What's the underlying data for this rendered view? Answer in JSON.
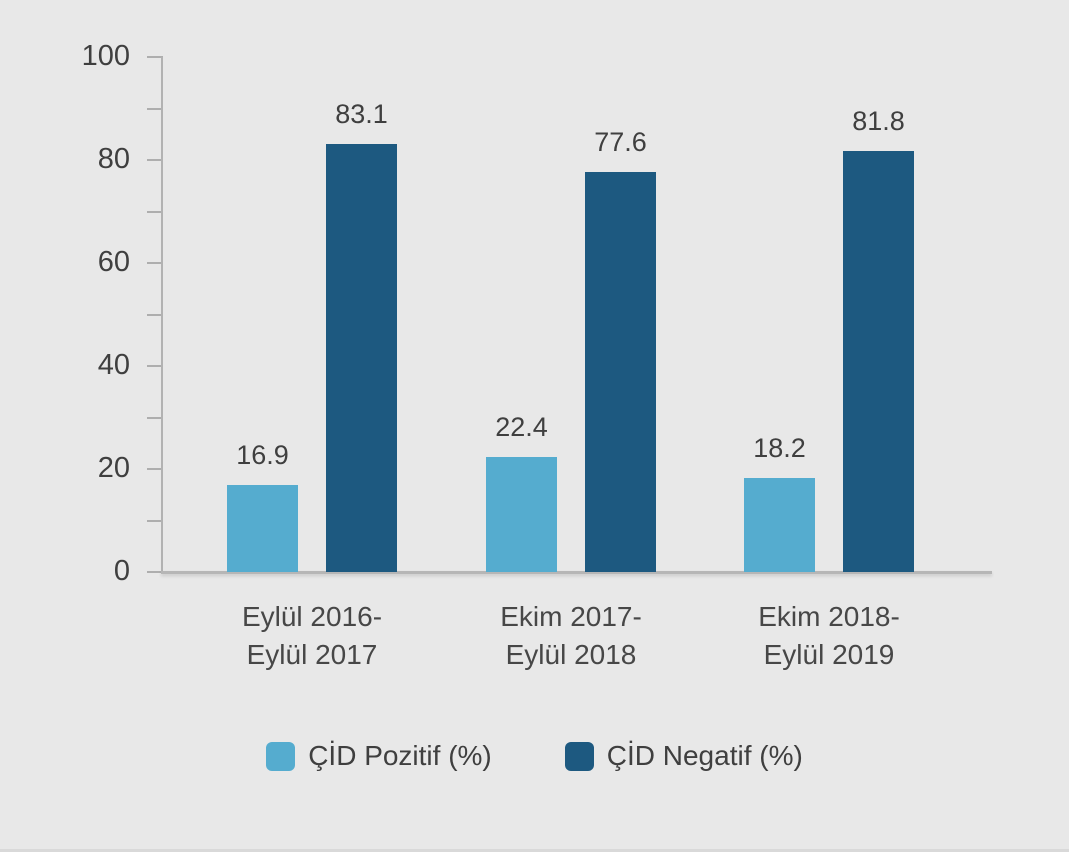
{
  "chart_data": {
    "type": "bar",
    "categories": [
      {
        "line1": "Eylül 2016-",
        "line2": "Eylül 2017"
      },
      {
        "line1": "Ekim 2017-",
        "line2": "Eylül 2018"
      },
      {
        "line1": "Ekim 2018-",
        "line2": "Eylül 2019"
      }
    ],
    "series": [
      {
        "name": "ÇİD Pozitif (%)",
        "color": "#55accf",
        "values": [
          16.9,
          22.4,
          18.2
        ]
      },
      {
        "name": "ÇİD Negatif (%)",
        "color": "#1d5980",
        "values": [
          83.1,
          77.6,
          81.8
        ]
      }
    ],
    "ylim": [
      0,
      100
    ],
    "y_major_ticks": [
      0,
      20,
      40,
      60,
      80,
      100
    ],
    "y_minor_step": 10,
    "grid": false,
    "legend_position": "bottom",
    "colors": {
      "background": "#e8e8e8",
      "axis": "#b2b2b2",
      "text": "#3f3f3f"
    }
  }
}
